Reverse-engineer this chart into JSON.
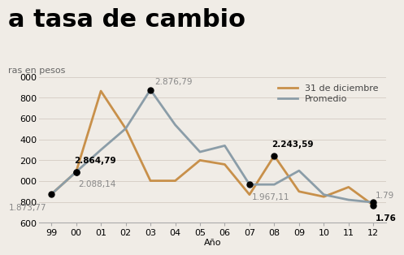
{
  "title": "a tasa de cambio",
  "subtitle": "ras en pesos",
  "xlabel": "Año",
  "year_labels": [
    "99",
    "00",
    "01",
    "02",
    "03",
    "04",
    "05",
    "06",
    "07",
    "08",
    "09",
    "10",
    "11",
    "12"
  ],
  "dec31": [
    1873.77,
    2088.14,
    2864.79,
    2504.0,
    2003.0,
    2003.0,
    2200.0,
    2160.0,
    1870.0,
    2243.59,
    1900.0,
    1850.0,
    1942.0,
    1768.0
  ],
  "promedio": [
    1873.77,
    2088.14,
    2299.77,
    2504.0,
    2876.79,
    2540.0,
    2280.0,
    2340.0,
    1967.11,
    1967.11,
    2100.0,
    1870.0,
    1820.0,
    1796.0
  ],
  "color_dec31": "#C8904A",
  "color_promedio": "#8B9DA8",
  "ylim": [
    1600,
    3000
  ],
  "yticks": [
    1600,
    1800,
    2000,
    2200,
    2400,
    2600,
    2800,
    3000
  ],
  "ytick_labels": [
    "600",
    "800",
    "000",
    "200",
    "400",
    "600",
    "800",
    "000"
  ],
  "legend_dec31": "31 de diciembre",
  "legend_promedio": "Promedio",
  "background_color": "#f0ece6",
  "grid_color": "#d8d0c8",
  "title_fontsize": 22,
  "subtitle_fontsize": 8,
  "axis_fontsize": 8,
  "annot_fontsize": 7.5
}
